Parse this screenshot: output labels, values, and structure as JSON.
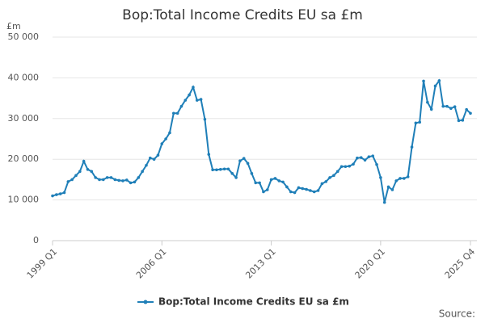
{
  "chart_data": {
    "type": "line",
    "title": "Bop:Total Income Credits EU sa £m",
    "y_unit": "£m",
    "source": "Source:",
    "categories": [
      "1999 Q1",
      null,
      null,
      null,
      null,
      null,
      null,
      null,
      null,
      null,
      null,
      null,
      null,
      null,
      null,
      null,
      null,
      null,
      null,
      null,
      null,
      null,
      null,
      null,
      null,
      null,
      null,
      null,
      "2006 Q1",
      null,
      null,
      null,
      null,
      null,
      null,
      null,
      null,
      null,
      null,
      null,
      null,
      null,
      null,
      null,
      null,
      null,
      null,
      null,
      null,
      null,
      null,
      null,
      null,
      null,
      null,
      null,
      "2013 Q1",
      null,
      null,
      null,
      null,
      null,
      null,
      null,
      null,
      null,
      null,
      null,
      null,
      null,
      null,
      null,
      null,
      null,
      null,
      null,
      null,
      null,
      null,
      null,
      null,
      null,
      null,
      null,
      "2020 Q1",
      null,
      null,
      null,
      null,
      null,
      null,
      null,
      null,
      null,
      null,
      null,
      null,
      null,
      null,
      null,
      null,
      null,
      null,
      null,
      null,
      null,
      null,
      "2025 Q4"
    ],
    "series": [
      {
        "name": "Bop:Total Income Credits EU sa £m",
        "color": "#1f7fb8",
        "values": [
          11000,
          11300,
          11500,
          11800,
          14500,
          15000,
          16000,
          17000,
          19500,
          17500,
          17000,
          15500,
          15000,
          15000,
          15500,
          15500,
          15000,
          14800,
          14700,
          14900,
          14200,
          14400,
          15500,
          17000,
          18500,
          20300,
          20000,
          21000,
          23800,
          25000,
          26500,
          31300,
          31300,
          33000,
          34500,
          35800,
          37700,
          34500,
          34700,
          29800,
          21200,
          17400,
          17400,
          17500,
          17600,
          17600,
          16500,
          15500,
          19600,
          20200,
          19000,
          16500,
          14200,
          14200,
          12000,
          12500,
          15000,
          15300,
          14700,
          14400,
          13200,
          12000,
          11800,
          13000,
          12800,
          12600,
          12300,
          12000,
          12300,
          14000,
          14500,
          15500,
          16000,
          17000,
          18200,
          18200,
          18300,
          18800,
          20300,
          20400,
          19800,
          20600,
          20800,
          18700,
          15500,
          9400,
          13200,
          12500,
          14700,
          15300,
          15300,
          15700,
          23000,
          28900,
          29100,
          39200,
          34000,
          32300,
          38000,
          39300,
          33000,
          33000,
          32500,
          32900,
          29500,
          29600,
          32200,
          31300
        ]
      }
    ],
    "ylim": [
      0,
      50000
    ],
    "yticks": [
      0,
      {
        "value": 10000,
        "label": "10 000"
      },
      {
        "value": 20000,
        "label": "20 000"
      },
      {
        "value": 30000,
        "label": "30 000"
      },
      {
        "value": 40000,
        "label": "40 000"
      },
      {
        "value": 50000,
        "label": "50 000"
      }
    ],
    "grid": true
  }
}
